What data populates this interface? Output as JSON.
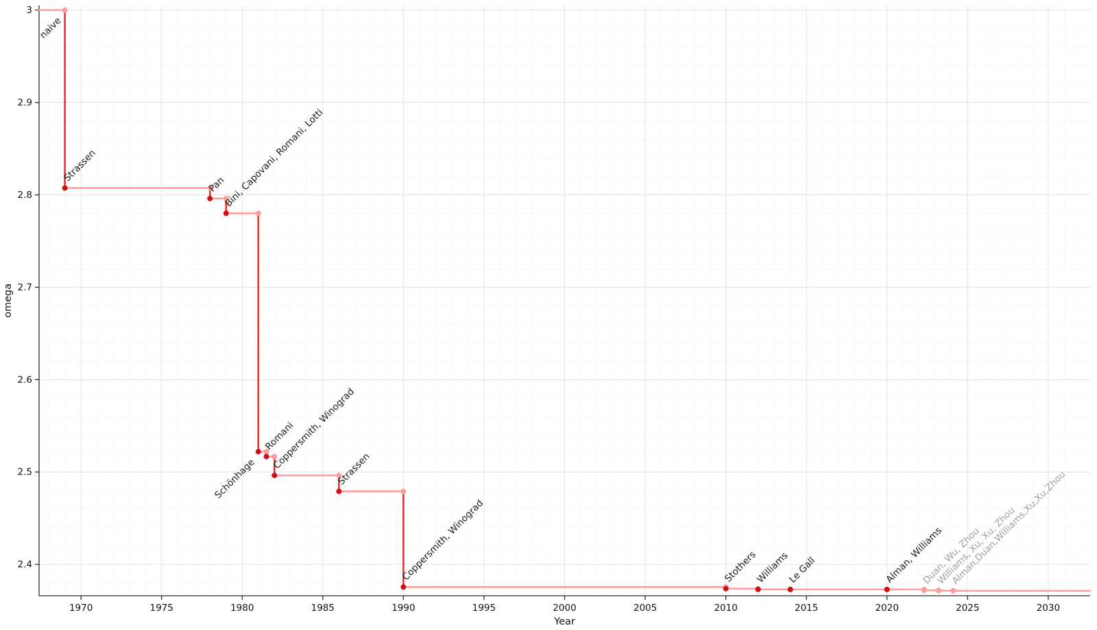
{
  "figure": {
    "background": "#ffffff"
  },
  "chart_data": {
    "type": "step-line",
    "title": "",
    "xlabel": "Year",
    "ylabel": "omega",
    "xlim": [
      1967.4,
      2032.6
    ],
    "ylim": [
      2.366,
      3.005
    ],
    "grid": {
      "major": true,
      "minor": true,
      "legend": "none"
    },
    "xticks": {
      "values": [
        1970,
        1975,
        1980,
        1985,
        1990,
        1995,
        2000,
        2005,
        2010,
        2015,
        2020,
        2025,
        2030
      ],
      "labels": [
        "1970",
        "1975",
        "1980",
        "1985",
        "1990",
        "1995",
        "2000",
        "2005",
        "2010",
        "2015",
        "2020",
        "2025",
        "2030"
      ]
    },
    "yticks": {
      "values": [
        2.4,
        2.5,
        2.6,
        2.7,
        2.8,
        2.9,
        3.0
      ],
      "labels": [
        "2.4",
        "2.5",
        "2.6",
        "2.7",
        "2.8",
        "2.9",
        "3"
      ]
    },
    "baseline": {
      "label": "naive",
      "omega": 3.0,
      "label_anchor": "end"
    },
    "records": [
      {
        "label": "Strassen",
        "year": 1969,
        "omega": 2.8074,
        "status": "established",
        "label_anchor": "start"
      },
      {
        "label": "Pan",
        "year": 1978,
        "omega": 2.796,
        "status": "established",
        "label_anchor": "start"
      },
      {
        "label": "Bini, Capovani, Romani, Lotti",
        "year": 1979,
        "omega": 2.78,
        "status": "established",
        "label_anchor": "start"
      },
      {
        "label": "Schönhage",
        "year": 1981,
        "omega": 2.522,
        "status": "established",
        "label_anchor": "end"
      },
      {
        "label": "Romani",
        "year": 1981.5,
        "omega": 2.5167,
        "status": "established",
        "label_anchor": "start"
      },
      {
        "label": "Coppersmith, Winograd",
        "year": 1982,
        "omega": 2.4963,
        "status": "established",
        "label_anchor": "start"
      },
      {
        "label": "Strassen",
        "year": 1986,
        "omega": 2.479,
        "status": "established",
        "label_anchor": "start"
      },
      {
        "label": "Coppersmith, Winograd",
        "year": 1990,
        "omega": 2.3755,
        "status": "established",
        "label_anchor": "start"
      },
      {
        "label": "Stothers",
        "year": 2010,
        "omega": 2.3737,
        "status": "established",
        "label_anchor": "start"
      },
      {
        "label": "Williams",
        "year": 2012,
        "omega": 2.3729,
        "status": "established",
        "label_anchor": "start"
      },
      {
        "label": "Le Gall",
        "year": 2014,
        "omega": 2.37286,
        "status": "established",
        "label_anchor": "start"
      },
      {
        "label": "Alman, Williams",
        "year": 2020,
        "omega": 2.37286,
        "status": "established",
        "label_anchor": "start"
      },
      {
        "label": "Duan, Wu, Zhou",
        "year": 2022.3,
        "omega": 2.37187,
        "status": "preliminary",
        "label_anchor": "start"
      },
      {
        "label": "Williams, Xu, Xu, Zhou",
        "year": 2023.2,
        "omega": 2.37155,
        "status": "preliminary",
        "label_anchor": "start"
      },
      {
        "label": "Alman,Duan,Williams,Xu,Xu,Zhou",
        "year": 2024.1,
        "omega": 2.37134,
        "status": "preliminary",
        "label_anchor": "start"
      }
    ],
    "colors": {
      "step_horizontal": "#ff9d9c",
      "step_drop": "#fb2a24",
      "marker_established": "#cf1013",
      "marker_preliminary": "#ff9d9c",
      "label_established": "#1a1a1a",
      "label_preliminary": "#a0a0a0",
      "grid_major": "#e4e4e4",
      "grid_minor": "#f1f1f1",
      "axis": "#2a2a2a",
      "tick_label": "#111111"
    }
  }
}
